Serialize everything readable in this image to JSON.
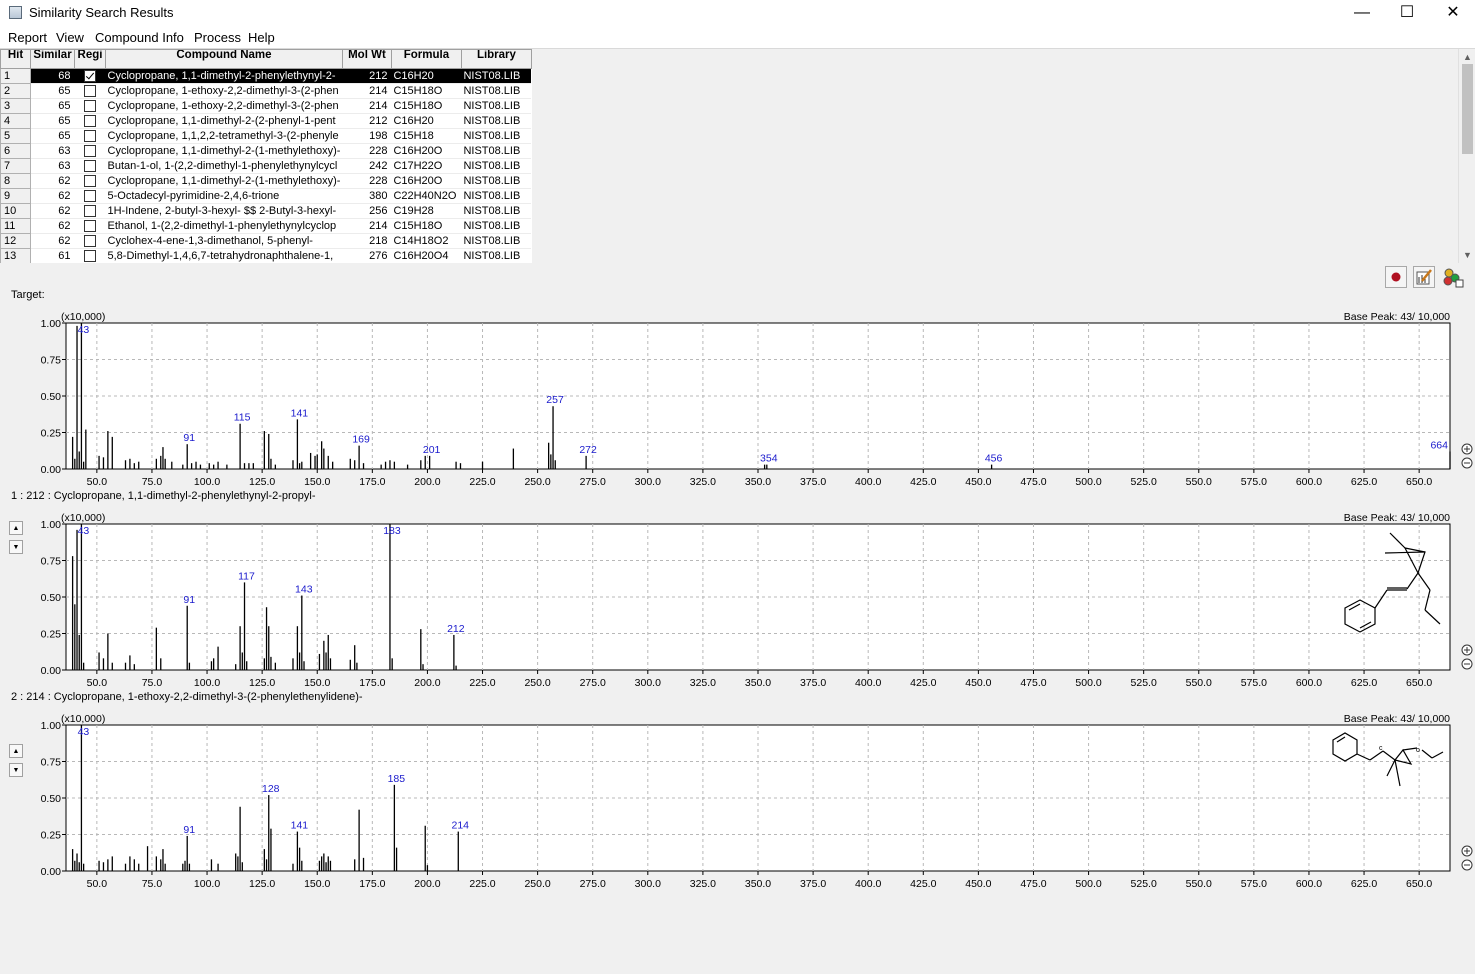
{
  "window": {
    "title": "Similarity Search Results",
    "controls": [
      "—",
      "☐",
      "✕"
    ]
  },
  "menu": [
    "Report",
    "View",
    "Compound Info",
    "Process",
    "Help"
  ],
  "table": {
    "headers": [
      "Hit",
      "Similar",
      "Regi",
      "Compound Name",
      "Mol Wt",
      "Formula",
      "Library"
    ],
    "rows": [
      {
        "hit": "1",
        "sim": "68",
        "checked": true,
        "name": "Cyclopropane, 1,1-dimethyl-2-phenylethynyl-2-",
        "mw": "212",
        "formula": "C16H20",
        "lib": "NIST08.LIB",
        "selected": true
      },
      {
        "hit": "2",
        "sim": "65",
        "checked": false,
        "name": "Cyclopropane, 1-ethoxy-2,2-dimethyl-3-(2-phen",
        "mw": "214",
        "formula": "C15H18O",
        "lib": "NIST08.LIB"
      },
      {
        "hit": "3",
        "sim": "65",
        "checked": false,
        "name": "Cyclopropane, 1-ethoxy-2,2-dimethyl-3-(2-phen",
        "mw": "214",
        "formula": "C15H18O",
        "lib": "NIST08.LIB"
      },
      {
        "hit": "4",
        "sim": "65",
        "checked": false,
        "name": "Cyclopropane, 1,1-dimethyl-2-(2-phenyl-1-pent",
        "mw": "212",
        "formula": "C16H20",
        "lib": "NIST08.LIB"
      },
      {
        "hit": "5",
        "sim": "65",
        "checked": false,
        "name": "Cyclopropane, 1,1,2,2-tetramethyl-3-(2-phenyle",
        "mw": "198",
        "formula": "C15H18",
        "lib": "NIST08.LIB"
      },
      {
        "hit": "6",
        "sim": "63",
        "checked": false,
        "name": "Cyclopropane, 1,1-dimethyl-2-(1-methylethoxy)-",
        "mw": "228",
        "formula": "C16H20O",
        "lib": "NIST08.LIB"
      },
      {
        "hit": "7",
        "sim": "63",
        "checked": false,
        "name": "Butan-1-ol, 1-(2,2-dimethyl-1-phenylethynylcycl",
        "mw": "242",
        "formula": "C17H22O",
        "lib": "NIST08.LIB"
      },
      {
        "hit": "8",
        "sim": "62",
        "checked": false,
        "name": "Cyclopropane, 1,1-dimethyl-2-(1-methylethoxy)-",
        "mw": "228",
        "formula": "C16H20O",
        "lib": "NIST08.LIB"
      },
      {
        "hit": "9",
        "sim": "62",
        "checked": false,
        "name": "5-Octadecyl-pyrimidine-2,4,6-trione",
        "mw": "380",
        "formula": "C22H40N2O",
        "lib": "NIST08.LIB"
      },
      {
        "hit": "10",
        "sim": "62",
        "checked": false,
        "name": "1H-Indene, 2-butyl-3-hexyl- $$ 2-Butyl-3-hexyl-",
        "mw": "256",
        "formula": "C19H28",
        "lib": "NIST08.LIB"
      },
      {
        "hit": "11",
        "sim": "62",
        "checked": false,
        "name": "Ethanol, 1-(2,2-dimethyl-1-phenylethynylcyclop",
        "mw": "214",
        "formula": "C15H18O",
        "lib": "NIST08.LIB"
      },
      {
        "hit": "12",
        "sim": "62",
        "checked": false,
        "name": "Cyclohex-4-ene-1,3-dimethanol, 5-phenyl-",
        "mw": "218",
        "formula": "C14H18O2",
        "lib": "NIST08.LIB"
      },
      {
        "hit": "13",
        "sim": "61",
        "checked": false,
        "name": "5,8-Dimethyl-1,4,6,7-tetrahydronaphthalene-1,",
        "mw": "276",
        "formula": "C16H20O4",
        "lib": "NIST08.LIB"
      }
    ]
  },
  "colors": {
    "peak_label": "#1a1acc",
    "selected_row_bg": "#000000",
    "record_dot": "#b01020"
  },
  "target_label": "Target:",
  "hit1_label": "1 : 212 : Cyclopropane, 1,1-dimethyl-2-phenylethynyl-2-propyl-",
  "hit2_label": "2 : 214 : Cyclopropane, 1-ethoxy-2,2-dimethyl-3-(2-phenylethenylidene)-",
  "icons": [
    "record-icon",
    "edit-spectrum-icon",
    "molecule-color-icon",
    "zoom-in-icon",
    "zoom-out-icon"
  ],
  "chart_data": [
    {
      "type": "bar",
      "title": "Target",
      "multiplier_label": "(x10,000)",
      "base_peak_label": "Base Peak: 43/ 10,000",
      "xlim": [
        36,
        664
      ],
      "ylim": [
        0,
        1.0
      ],
      "x_ticks": [
        "50.0",
        "75.0",
        "100.0",
        "125.0",
        "150.0",
        "175.0",
        "200.0",
        "225.0",
        "250.0",
        "275.0",
        "300.0",
        "325.0",
        "350.0",
        "375.0",
        "400.0",
        "425.0",
        "450.0",
        "475.0",
        "500.0",
        "525.0",
        "550.0",
        "575.0",
        "600.0",
        "625.0",
        "650.0"
      ],
      "y_ticks": [
        "0.00",
        "0.25",
        "0.50",
        "0.75",
        "1.00"
      ],
      "peaks": [
        [
          39,
          0.22
        ],
        [
          40,
          0.07
        ],
        [
          41,
          0.98
        ],
        [
          42,
          0.12
        ],
        [
          43,
          1.0
        ],
        [
          44,
          0.05
        ],
        [
          45,
          0.27
        ],
        [
          51,
          0.09
        ],
        [
          53,
          0.08
        ],
        [
          55,
          0.26
        ],
        [
          57,
          0.22
        ],
        [
          63,
          0.06
        ],
        [
          65,
          0.07
        ],
        [
          67,
          0.04
        ],
        [
          69,
          0.05
        ],
        [
          77,
          0.07
        ],
        [
          79,
          0.09
        ],
        [
          80,
          0.15
        ],
        [
          81,
          0.07
        ],
        [
          84,
          0.05
        ],
        [
          89,
          0.03
        ],
        [
          91,
          0.17
        ],
        [
          93,
          0.04
        ],
        [
          95,
          0.05
        ],
        [
          97,
          0.03
        ],
        [
          101,
          0.04
        ],
        [
          103,
          0.03
        ],
        [
          105,
          0.05
        ],
        [
          109,
          0.03
        ],
        [
          115,
          0.31
        ],
        [
          117,
          0.04
        ],
        [
          119,
          0.04
        ],
        [
          121,
          0.04
        ],
        [
          126,
          0.26
        ],
        [
          128,
          0.24
        ],
        [
          129,
          0.07
        ],
        [
          131,
          0.03
        ],
        [
          139,
          0.06
        ],
        [
          141,
          0.34
        ],
        [
          142,
          0.04
        ],
        [
          143,
          0.05
        ],
        [
          147,
          0.11
        ],
        [
          149,
          0.09
        ],
        [
          150,
          0.1
        ],
        [
          152,
          0.19
        ],
        [
          153,
          0.14
        ],
        [
          155,
          0.09
        ],
        [
          157,
          0.05
        ],
        [
          165,
          0.07
        ],
        [
          167,
          0.06
        ],
        [
          169,
          0.16
        ],
        [
          171,
          0.04
        ],
        [
          179,
          0.03
        ],
        [
          181,
          0.05
        ],
        [
          183,
          0.06
        ],
        [
          185,
          0.05
        ],
        [
          191,
          0.03
        ],
        [
          197,
          0.06
        ],
        [
          199,
          0.09
        ],
        [
          201,
          0.09
        ],
        [
          213,
          0.05
        ],
        [
          215,
          0.04
        ],
        [
          225,
          0.05
        ],
        [
          239,
          0.14
        ],
        [
          255,
          0.18
        ],
        [
          256,
          0.1
        ],
        [
          257,
          0.43
        ],
        [
          258,
          0.06
        ],
        [
          272,
          0.09
        ],
        [
          353,
          0.03
        ],
        [
          354,
          0.03
        ],
        [
          456,
          0.03
        ],
        [
          664,
          0.12
        ]
      ],
      "peak_labels": [
        [
          43,
          "43"
        ],
        [
          91,
          "91"
        ],
        [
          115,
          "115"
        ],
        [
          141,
          "141"
        ],
        [
          169,
          "169"
        ],
        [
          201,
          "201"
        ],
        [
          257,
          "257"
        ],
        [
          272,
          "272"
        ],
        [
          354,
          "354"
        ],
        [
          456,
          "456"
        ],
        [
          664,
          "664"
        ]
      ]
    },
    {
      "type": "bar",
      "title": "1 : 212 : Cyclopropane, 1,1-dimethyl-2-phenylethynyl-2-propyl-",
      "multiplier_label": "(x10,000)",
      "base_peak_label": "Base Peak: 43/ 10,000",
      "xlim": [
        36,
        664
      ],
      "ylim": [
        0,
        1.0
      ],
      "x_ticks": [
        "50.0",
        "75.0",
        "100.0",
        "125.0",
        "150.0",
        "175.0",
        "200.0",
        "225.0",
        "250.0",
        "275.0",
        "300.0",
        "325.0",
        "350.0",
        "375.0",
        "400.0",
        "425.0",
        "450.0",
        "475.0",
        "500.0",
        "525.0",
        "550.0",
        "575.0",
        "600.0",
        "625.0",
        "650.0"
      ],
      "y_ticks": [
        "0.00",
        "0.25",
        "0.50",
        "0.75",
        "1.00"
      ],
      "peaks": [
        [
          39,
          0.78
        ],
        [
          40,
          0.45
        ],
        [
          41,
          0.96
        ],
        [
          42,
          0.24
        ],
        [
          43,
          1.0
        ],
        [
          44,
          0.05
        ],
        [
          51,
          0.12
        ],
        [
          53,
          0.08
        ],
        [
          55,
          0.25
        ],
        [
          57,
          0.05
        ],
        [
          63,
          0.05
        ],
        [
          65,
          0.1
        ],
        [
          67,
          0.04
        ],
        [
          77,
          0.29
        ],
        [
          79,
          0.08
        ],
        [
          91,
          0.44
        ],
        [
          92,
          0.05
        ],
        [
          102,
          0.06
        ],
        [
          103,
          0.08
        ],
        [
          105,
          0.16
        ],
        [
          113,
          0.04
        ],
        [
          115,
          0.3
        ],
        [
          116,
          0.12
        ],
        [
          117,
          0.6
        ],
        [
          118,
          0.06
        ],
        [
          126,
          0.08
        ],
        [
          127,
          0.43
        ],
        [
          128,
          0.3
        ],
        [
          129,
          0.09
        ],
        [
          131,
          0.05
        ],
        [
          139,
          0.08
        ],
        [
          141,
          0.3
        ],
        [
          142,
          0.12
        ],
        [
          143,
          0.51
        ],
        [
          144,
          0.06
        ],
        [
          151,
          0.11
        ],
        [
          153,
          0.2
        ],
        [
          154,
          0.12
        ],
        [
          155,
          0.24
        ],
        [
          156,
          0.08
        ],
        [
          165,
          0.07
        ],
        [
          167,
          0.17
        ],
        [
          168,
          0.05
        ],
        [
          183,
          1.0
        ],
        [
          184,
          0.08
        ],
        [
          197,
          0.28
        ],
        [
          198,
          0.04
        ],
        [
          212,
          0.24
        ],
        [
          213,
          0.03
        ]
      ],
      "peak_labels": [
        [
          43,
          "43"
        ],
        [
          91,
          "91"
        ],
        [
          117,
          "117"
        ],
        [
          143,
          "143"
        ],
        [
          183,
          "183"
        ],
        [
          212,
          "212"
        ]
      ]
    },
    {
      "type": "bar",
      "title": "2 : 214 : Cyclopropane, 1-ethoxy-2,2-dimethyl-3-(2-phenylethenylidene)-",
      "multiplier_label": "(x10,000)",
      "base_peak_label": "Base Peak: 43/ 10,000",
      "xlim": [
        36,
        664
      ],
      "ylim": [
        0,
        1.0
      ],
      "x_ticks": [
        "50.0",
        "75.0",
        "100.0",
        "125.0",
        "150.0",
        "175.0",
        "200.0",
        "225.0",
        "250.0",
        "275.0",
        "300.0",
        "325.0",
        "350.0",
        "375.0",
        "400.0",
        "425.0",
        "450.0",
        "475.0",
        "500.0",
        "525.0",
        "550.0",
        "575.0",
        "600.0",
        "625.0",
        "650.0"
      ],
      "y_ticks": [
        "0.00",
        "0.25",
        "0.50",
        "0.75",
        "1.00"
      ],
      "peaks": [
        [
          39,
          0.15
        ],
        [
          40,
          0.07
        ],
        [
          41,
          0.12
        ],
        [
          42,
          0.06
        ],
        [
          43,
          1.0
        ],
        [
          44,
          0.05
        ],
        [
          51,
          0.07
        ],
        [
          53,
          0.06
        ],
        [
          55,
          0.08
        ],
        [
          57,
          0.1
        ],
        [
          63,
          0.05
        ],
        [
          65,
          0.1
        ],
        [
          67,
          0.08
        ],
        [
          69,
          0.05
        ],
        [
          73,
          0.17
        ],
        [
          77,
          0.1
        ],
        [
          79,
          0.08
        ],
        [
          80,
          0.15
        ],
        [
          81,
          0.05
        ],
        [
          89,
          0.05
        ],
        [
          90,
          0.07
        ],
        [
          91,
          0.24
        ],
        [
          92,
          0.05
        ],
        [
          102,
          0.08
        ],
        [
          105,
          0.05
        ],
        [
          113,
          0.12
        ],
        [
          114,
          0.1
        ],
        [
          115,
          0.44
        ],
        [
          116,
          0.06
        ],
        [
          126,
          0.15
        ],
        [
          127,
          0.08
        ],
        [
          128,
          0.52
        ],
        [
          129,
          0.29
        ],
        [
          139,
          0.05
        ],
        [
          141,
          0.27
        ],
        [
          142,
          0.16
        ],
        [
          143,
          0.07
        ],
        [
          151,
          0.07
        ],
        [
          152,
          0.1
        ],
        [
          153,
          0.12
        ],
        [
          154,
          0.06
        ],
        [
          155,
          0.1
        ],
        [
          156,
          0.07
        ],
        [
          167,
          0.08
        ],
        [
          169,
          0.42
        ],
        [
          171,
          0.09
        ],
        [
          185,
          0.59
        ],
        [
          186,
          0.16
        ],
        [
          199,
          0.31
        ],
        [
          200,
          0.04
        ],
        [
          214,
          0.27
        ]
      ],
      "peak_labels": [
        [
          43,
          "43"
        ],
        [
          91,
          "91"
        ],
        [
          128,
          "128"
        ],
        [
          141,
          "141"
        ],
        [
          185,
          "185"
        ],
        [
          214,
          "214"
        ]
      ]
    }
  ]
}
